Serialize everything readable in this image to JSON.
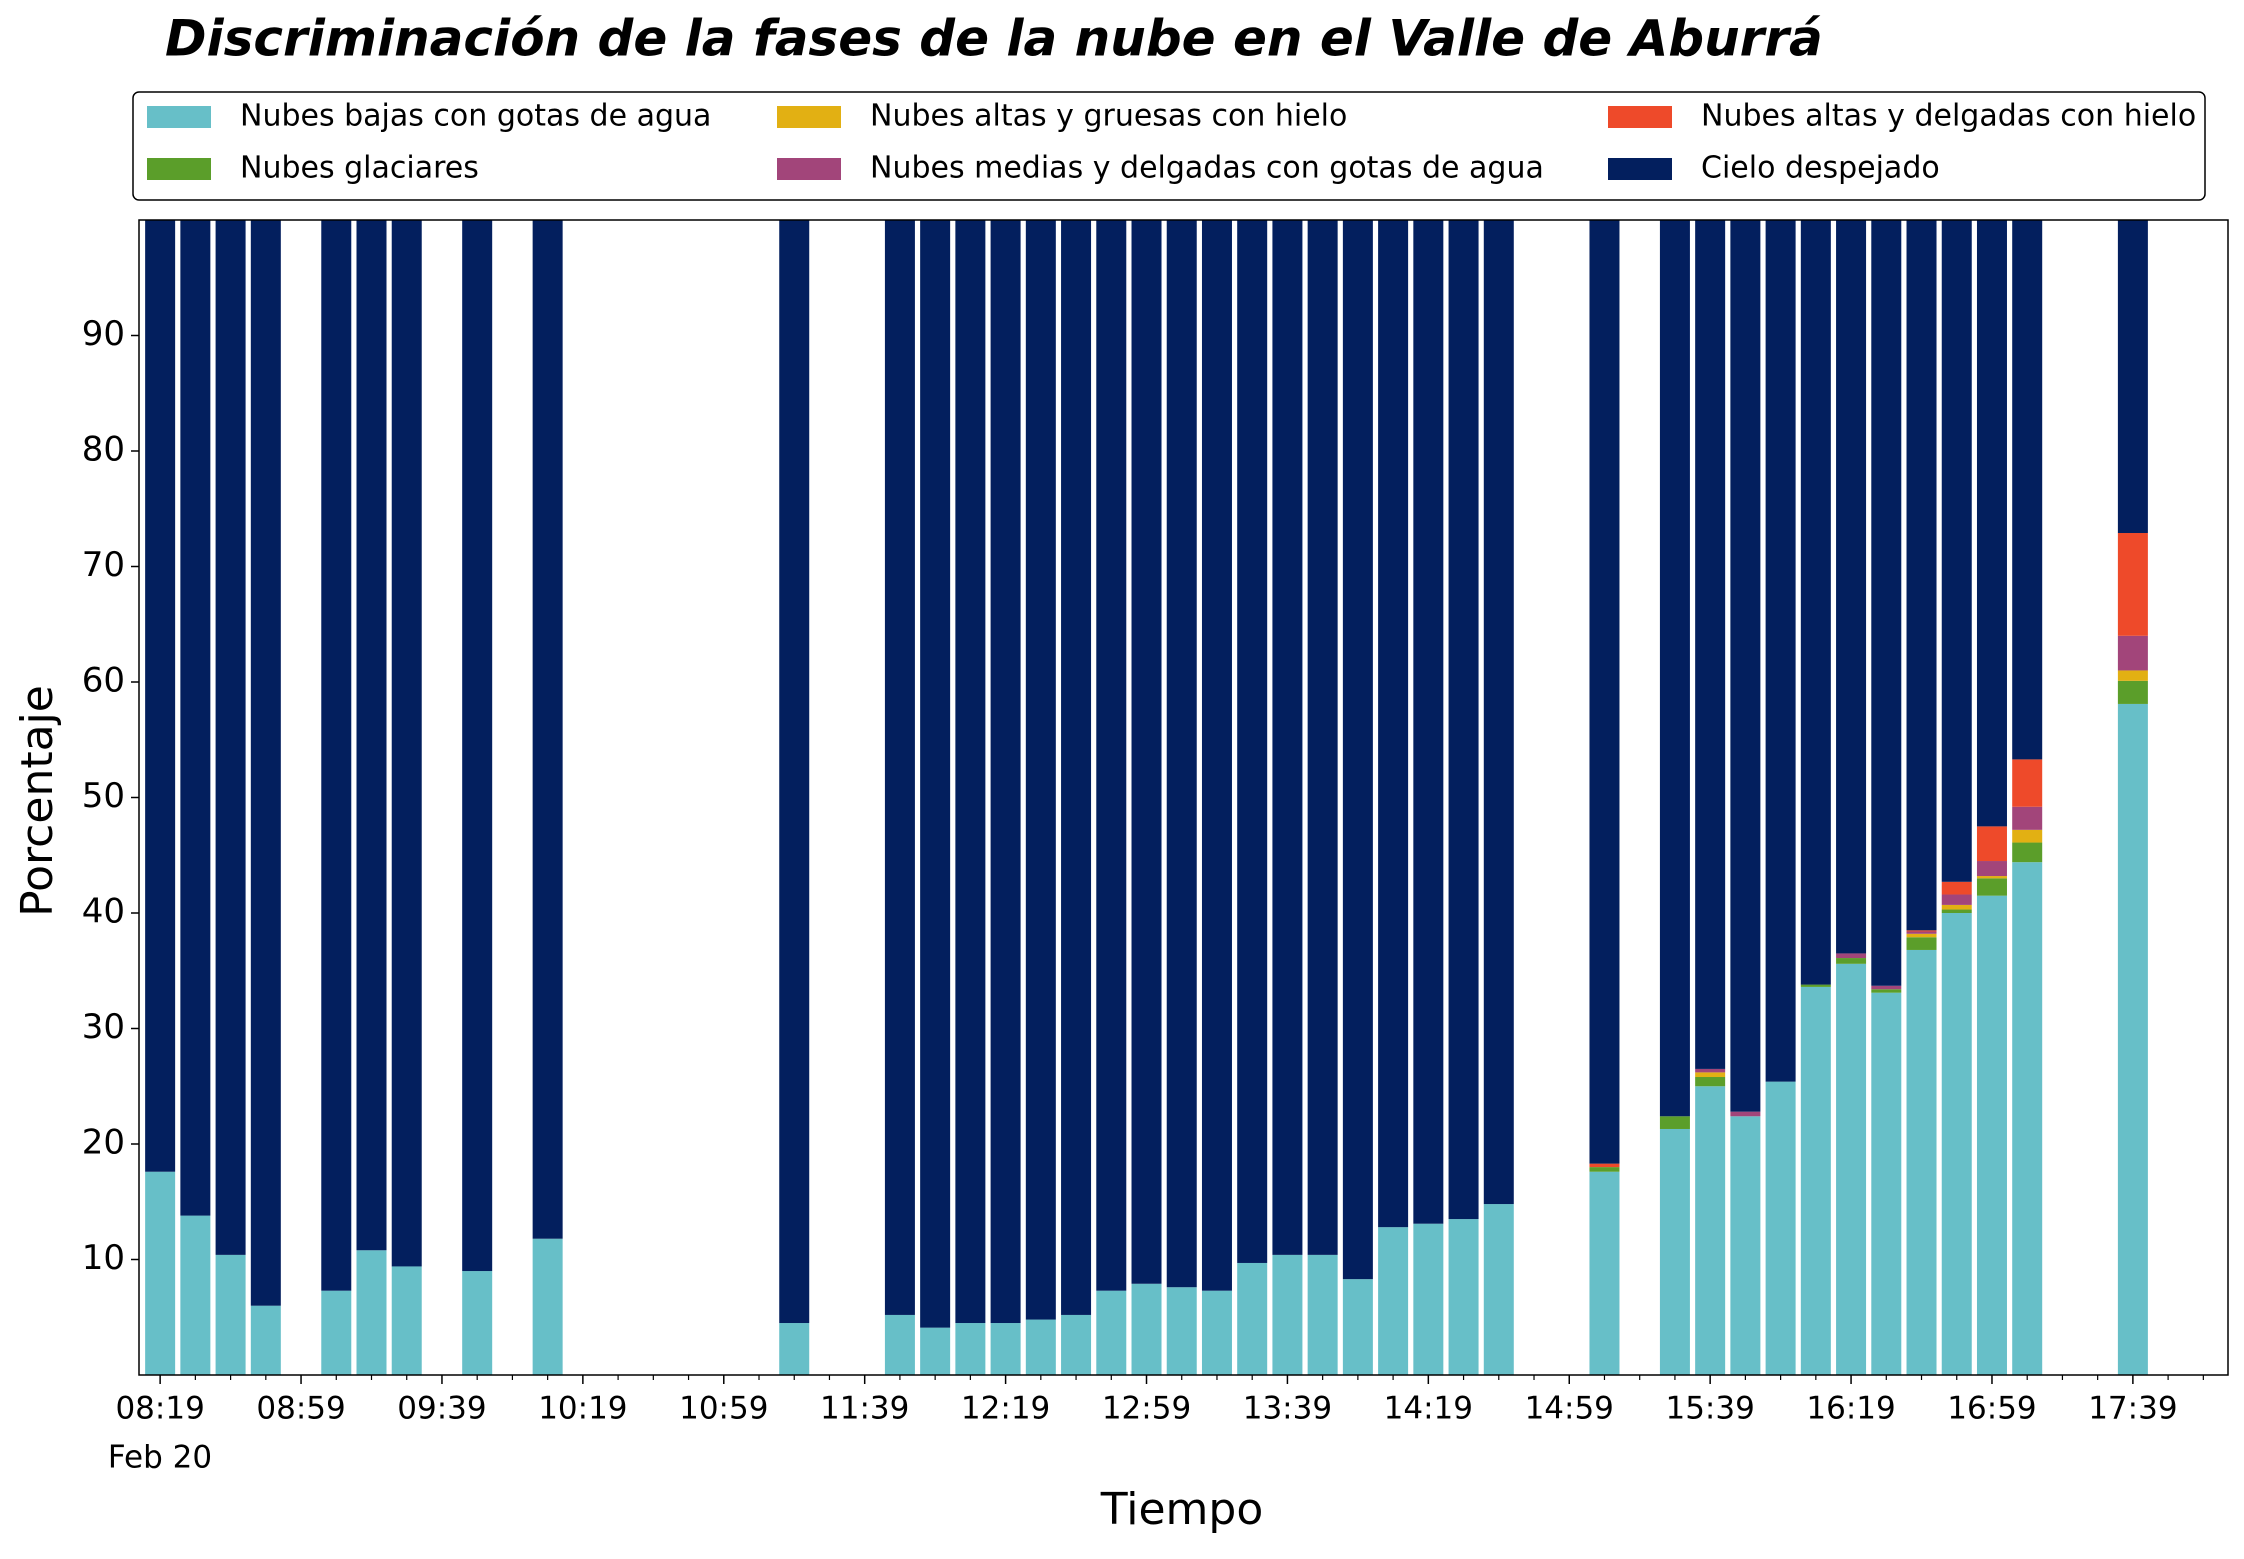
{
  "chart_data": {
    "type": "stacked_bar",
    "title": "Discriminación de la fases de la nube en el Valle de Aburrá",
    "x_label": "Tiempo",
    "y_label": "Porcentaje",
    "date_label": "Feb 20",
    "x": [
      "08:19",
      "08:29",
      "08:39",
      "08:49",
      "09:09",
      "09:19",
      "09:29",
      "09:49",
      "10:09",
      "11:19",
      "11:49",
      "11:59",
      "12:09",
      "12:19",
      "12:29",
      "12:39",
      "12:49",
      "12:59",
      "13:09",
      "13:19",
      "13:29",
      "13:39",
      "13:49",
      "13:59",
      "14:09",
      "14:19",
      "14:29",
      "14:39",
      "15:09",
      "15:29",
      "15:39",
      "15:49",
      "15:59",
      "16:09",
      "16:19",
      "16:29",
      "16:39",
      "16:49",
      "16:59",
      "17:09",
      "17:39"
    ],
    "xlim": [
      "08:13",
      "18:06"
    ],
    "xticks": [
      "08:19",
      "08:59",
      "09:39",
      "10:19",
      "10:59",
      "11:39",
      "12:19",
      "12:59",
      "13:39",
      "14:19",
      "14:59",
      "15:39",
      "16:19",
      "16:59",
      "17:39"
    ],
    "xminorticks": [
      "08:29",
      "08:39",
      "08:49",
      "09:09",
      "09:19",
      "09:29",
      "09:49",
      "09:59",
      "10:09",
      "10:29",
      "10:39",
      "10:49",
      "11:09",
      "11:19",
      "11:29",
      "11:49",
      "11:59",
      "12:09",
      "12:29",
      "12:39",
      "12:49",
      "13:09",
      "13:19",
      "13:29",
      "13:49",
      "13:59",
      "14:09",
      "14:29",
      "14:39",
      "14:49",
      "15:09",
      "15:19",
      "15:29",
      "15:49",
      "15:59",
      "16:09",
      "16:29",
      "16:39",
      "16:49",
      "17:09",
      "17:19",
      "17:29",
      "17:49",
      "17:59"
    ],
    "ylim": [
      0,
      100
    ],
    "yticks": [
      10,
      20,
      30,
      40,
      50,
      60,
      70,
      80,
      90
    ],
    "series": [
      {
        "name": "Nubes bajas con gotas de agua",
        "color": "#67bfc8",
        "values": [
          17.6,
          13.8,
          10.4,
          6.0,
          7.3,
          10.8,
          9.4,
          9.0,
          11.8,
          4.5,
          5.2,
          4.1,
          4.5,
          4.5,
          4.8,
          5.2,
          7.3,
          7.9,
          7.6,
          7.3,
          9.7,
          10.4,
          10.4,
          8.3,
          12.8,
          13.1,
          13.5,
          14.8,
          17.6,
          21.3,
          25.0,
          22.4,
          25.4,
          33.6,
          35.6,
          33.1,
          36.8,
          40.0,
          41.5,
          44.4,
          58.1
        ]
      },
      {
        "name": "Nubes glaciares",
        "color": "#5b9e2a",
        "values": [
          0,
          0,
          0,
          0,
          0,
          0,
          0,
          0,
          0,
          0,
          0,
          0,
          0,
          0,
          0,
          0,
          0,
          0,
          0,
          0,
          0,
          0,
          0,
          0,
          0,
          0,
          0,
          0,
          0.4,
          1.1,
          0.8,
          0,
          0,
          0.2,
          0.5,
          0.3,
          1.1,
          0.3,
          1.5,
          1.7,
          2.0
        ]
      },
      {
        "name": "Nubes altas y gruesas con hielo",
        "color": "#e2b013",
        "values": [
          0,
          0,
          0,
          0,
          0,
          0,
          0,
          0,
          0,
          0,
          0,
          0,
          0,
          0,
          0,
          0,
          0,
          0,
          0,
          0,
          0,
          0,
          0,
          0,
          0,
          0,
          0,
          0,
          0,
          0,
          0.4,
          0,
          0,
          0,
          0,
          0,
          0.3,
          0.4,
          0.2,
          1.1,
          0.9
        ]
      },
      {
        "name": "Nubes medias y delgadas con gotas de agua",
        "color": "#a2457a",
        "values": [
          0,
          0,
          0,
          0,
          0,
          0,
          0,
          0,
          0,
          0,
          0,
          0,
          0,
          0,
          0,
          0,
          0,
          0,
          0,
          0,
          0,
          0,
          0,
          0,
          0,
          0,
          0,
          0,
          0,
          0,
          0.3,
          0.4,
          0,
          0,
          0.4,
          0.3,
          0.2,
          0.9,
          1.3,
          2.0,
          3.0
        ]
      },
      {
        "name": "Nubes altas y delgadas con hielo",
        "color": "#ee4a2a",
        "values": [
          0,
          0,
          0,
          0,
          0,
          0,
          0,
          0,
          0,
          0,
          0,
          0,
          0,
          0,
          0,
          0,
          0,
          0,
          0,
          0,
          0,
          0,
          0,
          0,
          0,
          0,
          0,
          0,
          0.3,
          0,
          0,
          0,
          0,
          0,
          0,
          0,
          0.1,
          1.1,
          3.0,
          4.1,
          8.9
        ]
      },
      {
        "name": "Cielo despejado",
        "color": "#031f5e",
        "values": [
          82.4,
          86.2,
          89.6,
          94.0,
          92.7,
          89.2,
          90.6,
          91.0,
          88.2,
          95.5,
          94.8,
          95.9,
          95.5,
          95.5,
          95.2,
          94.8,
          92.7,
          92.1,
          92.4,
          92.7,
          90.3,
          89.6,
          89.6,
          91.7,
          87.2,
          86.9,
          86.5,
          85.2,
          81.7,
          77.6,
          73.5,
          77.2,
          74.6,
          66.2,
          63.5,
          66.3,
          61.5,
          57.3,
          52.5,
          46.7,
          27.1
        ]
      }
    ]
  }
}
